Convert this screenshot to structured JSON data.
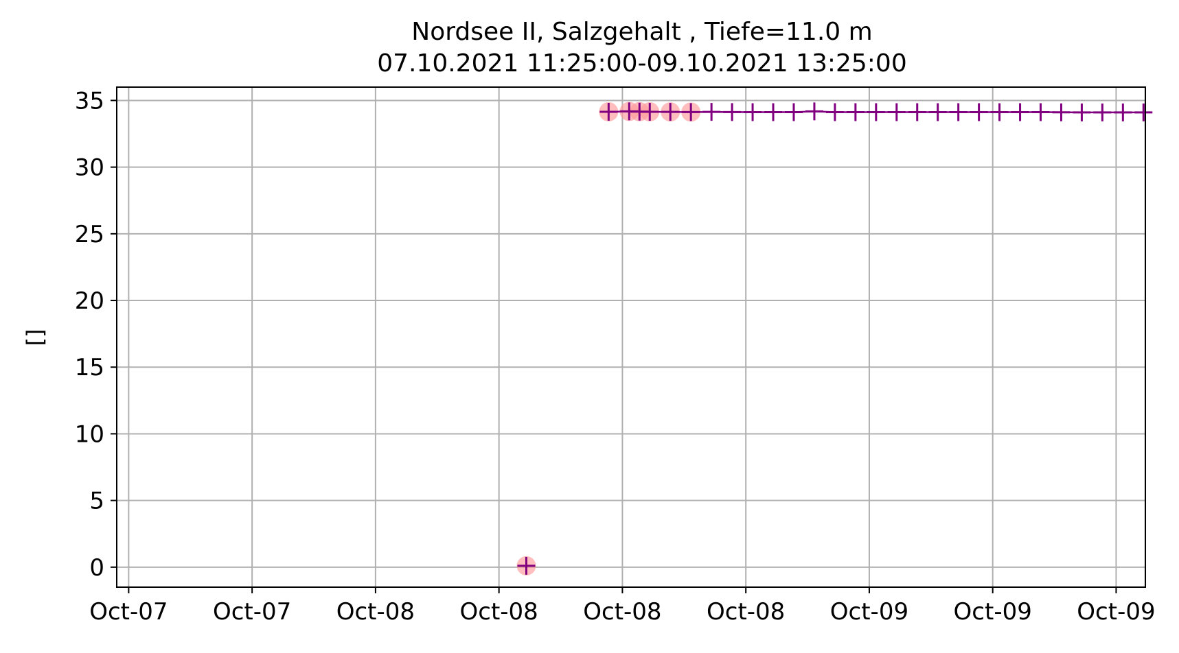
{
  "chart_data": {
    "type": "line",
    "title": [
      "Nordsee II, Salzgehalt , Tiefe=11.0 m",
      "07.10.2021 11:25:00-09.10.2021 13:25:00"
    ],
    "ylabel": "[]",
    "xlabel": "",
    "x_tick_labels": [
      "Oct-07",
      "Oct-07",
      "Oct-08",
      "Oct-08",
      "Oct-08",
      "Oct-08",
      "Oct-09",
      "Oct-09",
      "Oct-09"
    ],
    "x_ticks_hours": [
      12,
      18,
      24,
      30,
      36,
      42,
      48,
      54,
      60
    ],
    "x_unit": "hours since 2021-10-07 00:00",
    "xlim_hours": [
      11.42,
      61.42
    ],
    "y_ticks": [
      0,
      5,
      10,
      15,
      20,
      25,
      30,
      35
    ],
    "ylim": [
      -1.5,
      36.0
    ],
    "grid": true,
    "colors": {
      "line": "#800080",
      "flag": "#ff9999"
    },
    "series": [
      {
        "values": [
          {
            "x": 31.33,
            "y": 0.1
          },
          {
            "x": 35.33,
            "y": 34.15
          },
          {
            "x": 36.33,
            "y": 34.18
          },
          {
            "x": 36.83,
            "y": 34.16
          },
          {
            "x": 37.33,
            "y": 34.15
          },
          {
            "x": 38.33,
            "y": 34.14
          },
          {
            "x": 39.33,
            "y": 34.13
          },
          {
            "x": 40.33,
            "y": 34.14
          },
          {
            "x": 41.33,
            "y": 34.13
          },
          {
            "x": 42.33,
            "y": 34.12
          },
          {
            "x": 43.33,
            "y": 34.12
          },
          {
            "x": 44.33,
            "y": 34.12
          },
          {
            "x": 45.33,
            "y": 34.18
          },
          {
            "x": 46.33,
            "y": 34.12
          },
          {
            "x": 47.33,
            "y": 34.12
          },
          {
            "x": 48.33,
            "y": 34.12
          },
          {
            "x": 49.33,
            "y": 34.12
          },
          {
            "x": 50.33,
            "y": 34.12
          },
          {
            "x": 51.33,
            "y": 34.12
          },
          {
            "x": 52.33,
            "y": 34.12
          },
          {
            "x": 53.33,
            "y": 34.12
          },
          {
            "x": 54.33,
            "y": 34.12
          },
          {
            "x": 55.33,
            "y": 34.12
          },
          {
            "x": 56.33,
            "y": 34.12
          },
          {
            "x": 57.33,
            "y": 34.11
          },
          {
            "x": 58.33,
            "y": 34.1
          },
          {
            "x": 59.33,
            "y": 34.1
          },
          {
            "x": 60.33,
            "y": 34.1
          },
          {
            "x": 61.33,
            "y": 34.1
          }
        ],
        "flagged_x": [
          31.33,
          35.33,
          36.33,
          36.83,
          37.33,
          38.33,
          39.33
        ]
      }
    ]
  }
}
